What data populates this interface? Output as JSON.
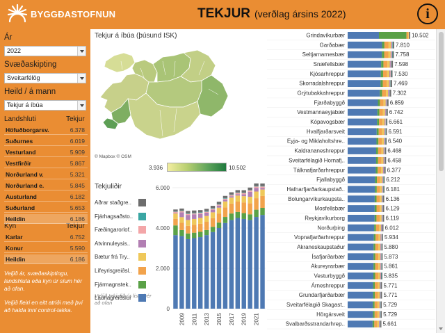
{
  "header": {
    "logo_text": "BYGGÐASTOFNUN",
    "title": "TEKJUR",
    "subtitle": "(verðlag ársins 2022)"
  },
  "sidebar": {
    "year_label": "Ár",
    "year_value": "2022",
    "division_label": "Svæðaskipting",
    "division_value": "Sveitarfélög",
    "total_label": "Heild / á mann",
    "total_value": "Tekjur á íbúa",
    "region_header": "Landshluti",
    "value_header": "Tekjur",
    "regions": [
      {
        "name": "Höfuðborgarsv.",
        "value": "6.378"
      },
      {
        "name": "Suðurnes",
        "value": "6.019"
      },
      {
        "name": "Vesturland",
        "value": "5.909"
      },
      {
        "name": "Vestfirðir",
        "value": "5.867"
      },
      {
        "name": "Norðurland v.",
        "value": "5.321"
      },
      {
        "name": "Norðurland e.",
        "value": "5.845"
      },
      {
        "name": "Austurland",
        "value": "6.182"
      },
      {
        "name": "Suðurland",
        "value": "5.653"
      },
      {
        "name": "Heildin",
        "value": "6.186"
      }
    ],
    "gender_header": "Kyn",
    "gender_value_header": "Tekjur",
    "genders": [
      {
        "name": "Karlar",
        "value": "6.752"
      },
      {
        "name": "Konur",
        "value": "5.590"
      },
      {
        "name": "Heildin",
        "value": "6.186"
      }
    ],
    "note1": "Veljið ár, svæðaskiptingu, landshluta eða kyn úr síum hér að ofan.",
    "note2": "Veljið fleiri en eitt atriði með því að halda inni control-takka."
  },
  "map": {
    "title": "Tekjur á íbúa (þúsund ISK)",
    "credit": "© Mapbox © OSM",
    "legend_min": "3.936",
    "legend_max": "10.502"
  },
  "components": {
    "title": "Tekjuliðir",
    "items": [
      {
        "label": "Aðrar staðgre..",
        "color": "#6d6d6d"
      },
      {
        "label": "Fjárhagsaðsto..",
        "color": "#3aa6a3"
      },
      {
        "label": "Fæðingarorlof..",
        "color": "#f3a6a8"
      },
      {
        "label": "Atvinnuleysis..",
        "color": "#b27fb3"
      },
      {
        "label": "Bætur frá Try..",
        "color": "#efc85a"
      },
      {
        "label": "Lífeyrisgreiðsl..",
        "color": "#f2a34c"
      },
      {
        "label": "Fjármagnstek..",
        "color": "#5aa147"
      },
      {
        "label": "Launagreiðslur",
        "color": "#4e79b3"
      }
    ],
    "note": "Veljið tekjulið úr lista hér að ofan"
  },
  "chart_data": [
    {
      "type": "bar",
      "stacked": true,
      "title": "",
      "xlabel": "",
      "ylabel": "",
      "ylim": [
        0,
        6000
      ],
      "yticks": [
        "0",
        "2.000",
        "4.000",
        "6.000"
      ],
      "xticks": [
        "2009",
        "2011",
        "2013",
        "2015",
        "2017",
        "2019",
        "2021"
      ],
      "categories": [
        "2008",
        "2009",
        "2010",
        "2011",
        "2012",
        "2013",
        "2014",
        "2015",
        "2016",
        "2017",
        "2018",
        "2019",
        "2020",
        "2021",
        "2022"
      ],
      "series": [
        {
          "name": "Launagreiðslur",
          "values": [
            3650,
            3600,
            3450,
            3500,
            3550,
            3650,
            3800,
            4000,
            4250,
            4400,
            4500,
            4450,
            4400,
            4550,
            4650
          ]
        },
        {
          "name": "Fjármagnstek..",
          "values": [
            480,
            300,
            280,
            270,
            260,
            250,
            260,
            270,
            300,
            320,
            300,
            290,
            280,
            360,
            350
          ]
        },
        {
          "name": "Lífeyrisgreiðsl..",
          "values": [
            330,
            360,
            380,
            390,
            400,
            410,
            430,
            450,
            470,
            490,
            510,
            530,
            550,
            570,
            590
          ]
        },
        {
          "name": "Bætur frá Try..",
          "values": [
            260,
            280,
            290,
            290,
            290,
            290,
            290,
            290,
            300,
            300,
            300,
            310,
            320,
            330,
            320
          ]
        },
        {
          "name": "Atvinnuleysis..",
          "values": [
            30,
            240,
            250,
            230,
            200,
            160,
            130,
            100,
            80,
            70,
            70,
            90,
            250,
            180,
            80
          ]
        },
        {
          "name": "Fæðingarorlof..",
          "values": [
            60,
            60,
            55,
            50,
            50,
            50,
            50,
            55,
            60,
            60,
            65,
            65,
            65,
            70,
            70
          ]
        },
        {
          "name": "Fjárhagsaðsto..",
          "values": [
            20,
            25,
            30,
            30,
            30,
            30,
            30,
            28,
            25,
            22,
            20,
            20,
            22,
            22,
            20
          ]
        },
        {
          "name": "Aðrar staðgre..",
          "values": [
            90,
            100,
            110,
            110,
            110,
            110,
            110,
            110,
            110,
            110,
            115,
            120,
            120,
            130,
            130
          ]
        }
      ]
    },
    {
      "type": "bar",
      "orientation": "horizontal",
      "stacked": true,
      "title": "",
      "categories": [
        "Grindavíkurbær",
        "Garðabær",
        "Seltjarnarnesbær",
        "Snæfellsbær",
        "Kjósarhreppur",
        "Skorradalshreppur",
        "Grýtubakkahreppur",
        "Fjarðabyggð",
        "Vestmannaeyjabær",
        "Kópavogsbær",
        "Hvalfjarðarsveit",
        "Eyja- og Miklaholtshre..",
        "Kaldrananeshreppur",
        "Sveitarfélagið Hornafj..",
        "Tálknafjarðarhreppur",
        "Fjallabyggð",
        "Hafnarfjarðarkaupstað..",
        "Bolungarvíkurkaupsta..",
        "Mosfellsbær",
        "Reykjavíkurborg",
        "Norðurþing",
        "Vopnafjarðarhreppur",
        "Akraneskaupstaður",
        "Ísafjarðarbær",
        "Akureyrarbær",
        "Vesturbyggð",
        "Árneshreppur",
        "Grundarfjarðarbær",
        "Sveitarfélagið Skagast..",
        "Hörgársveit",
        "Svalbarðsstrandarhrep.."
      ],
      "totals": [
        10502,
        7810,
        7758,
        7598,
        7530,
        7469,
        7302,
        6859,
        6742,
        6661,
        6591,
        6540,
        6468,
        6458,
        6377,
        6212,
        6181,
        6136,
        6129,
        6119,
        6012,
        5934,
        5880,
        5873,
        5861,
        5835,
        5771,
        5771,
        5729,
        5729,
        5661
      ],
      "total_labels": [
        "10.502",
        "7.810",
        "7.758",
        "7.598",
        "7.530",
        "7.469",
        "7.302",
        "6.859",
        "6.742",
        "6.661",
        "6.591",
        "6.540",
        "6.468",
        "6.458",
        "6.377",
        "6.212",
        "6.181",
        "6.136",
        "6.129",
        "6.119",
        "6.012",
        "5.934",
        "5.880",
        "5.873",
        "5.861",
        "5.835",
        "5.771",
        "5.771",
        "5.729",
        "5.729",
        "5.661"
      ],
      "xlim": [
        0,
        10502
      ]
    }
  ]
}
